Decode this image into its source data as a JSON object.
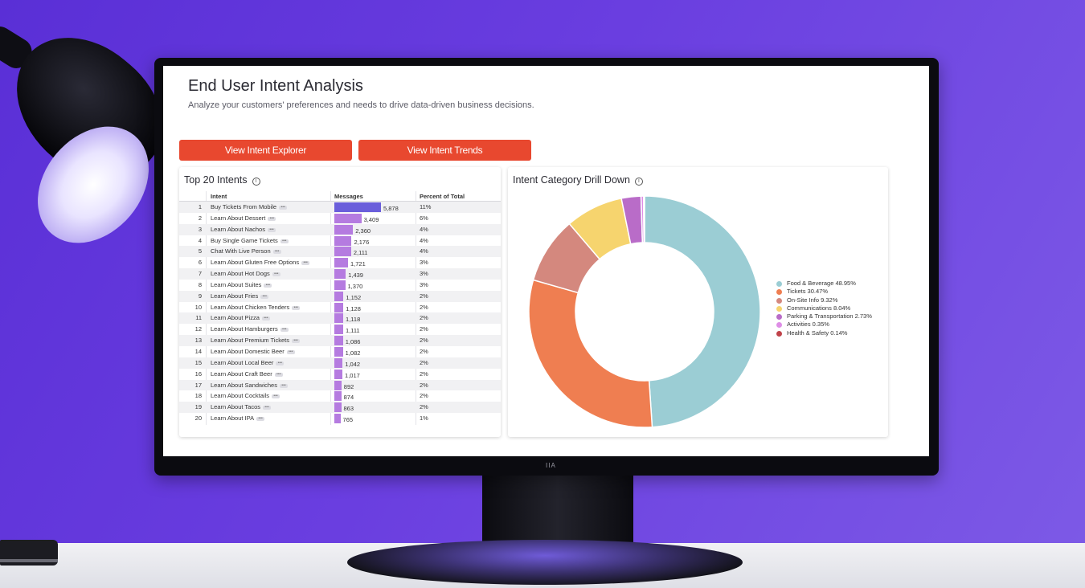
{
  "page": {
    "title": "End User Intent Analysis",
    "subtitle": "Analyze your customers' preferences and needs to drive data-driven business decisions."
  },
  "buttons": {
    "explorer": "View Intent Explorer",
    "trends": "View Intent Trends"
  },
  "monitor": {
    "logo": "IIA"
  },
  "left_card": {
    "title": "Top 20 Intents",
    "info_icon": "info-icon",
    "columns": {
      "intent": "Intent",
      "messages": "Messages",
      "percent": "Percent of Total"
    },
    "rows": [
      {
        "num": "1",
        "intent": "Buy Tickets From Mobile",
        "messages": "5,878",
        "value": 5878,
        "percent": "11%"
      },
      {
        "num": "2",
        "intent": "Learn About Dessert",
        "messages": "3,409",
        "value": 3409,
        "percent": "6%"
      },
      {
        "num": "3",
        "intent": "Learn About Nachos",
        "messages": "2,360",
        "value": 2360,
        "percent": "4%"
      },
      {
        "num": "4",
        "intent": "Buy Single Game Tickets",
        "messages": "2,176",
        "value": 2176,
        "percent": "4%"
      },
      {
        "num": "5",
        "intent": "Chat With Live Person",
        "messages": "2,111",
        "value": 2111,
        "percent": "4%"
      },
      {
        "num": "6",
        "intent": "Learn About Gluten Free Options",
        "messages": "1,721",
        "value": 1721,
        "percent": "3%"
      },
      {
        "num": "7",
        "intent": "Learn About Hot Dogs",
        "messages": "1,439",
        "value": 1439,
        "percent": "3%"
      },
      {
        "num": "8",
        "intent": "Learn About Suites",
        "messages": "1,370",
        "value": 1370,
        "percent": "3%"
      },
      {
        "num": "9",
        "intent": "Learn About Fries",
        "messages": "1,152",
        "value": 1152,
        "percent": "2%"
      },
      {
        "num": "10",
        "intent": "Learn About Chicken Tenders",
        "messages": "1,128",
        "value": 1128,
        "percent": "2%"
      },
      {
        "num": "11",
        "intent": "Learn About Pizza",
        "messages": "1,118",
        "value": 1118,
        "percent": "2%"
      },
      {
        "num": "12",
        "intent": "Learn About Hamburgers",
        "messages": "1,111",
        "value": 1111,
        "percent": "2%"
      },
      {
        "num": "13",
        "intent": "Learn About Premium Tickets",
        "messages": "1,086",
        "value": 1086,
        "percent": "2%"
      },
      {
        "num": "14",
        "intent": "Learn About Domestic Beer",
        "messages": "1,082",
        "value": 1082,
        "percent": "2%"
      },
      {
        "num": "15",
        "intent": "Learn About Local Beer",
        "messages": "1,042",
        "value": 1042,
        "percent": "2%"
      },
      {
        "num": "16",
        "intent": "Learn About Craft Beer",
        "messages": "1,017",
        "value": 1017,
        "percent": "2%"
      },
      {
        "num": "17",
        "intent": "Learn About Sandwiches",
        "messages": "892",
        "value": 892,
        "percent": "2%"
      },
      {
        "num": "18",
        "intent": "Learn About Cocktails",
        "messages": "874",
        "value": 874,
        "percent": "2%"
      },
      {
        "num": "19",
        "intent": "Learn About Tacos",
        "messages": "863",
        "value": 863,
        "percent": "2%"
      },
      {
        "num": "20",
        "intent": "Learn About IPA",
        "messages": "765",
        "value": 765,
        "percent": "1%"
      }
    ]
  },
  "right_card": {
    "title": "Intent Category Drill Down",
    "info_icon": "info-icon"
  },
  "chart_data": {
    "type": "pie",
    "variant": "donut",
    "legend_position": "right",
    "categories": [
      {
        "label": "Food & Beverage 48.95%",
        "value": 48.95,
        "color": "#9bcdd4"
      },
      {
        "label": "Tickets 30.47%",
        "value": 30.47,
        "color": "#ef7e51"
      },
      {
        "label": "On-Site Info 9.32%",
        "value": 9.32,
        "color": "#d4887e"
      },
      {
        "label": "Communications 8.04%",
        "value": 8.04,
        "color": "#f6d46e"
      },
      {
        "label": "Parking & Transportation 2.73%",
        "value": 2.73,
        "color": "#b96cc8"
      },
      {
        "label": "Activities 0.35%",
        "value": 0.35,
        "color": "#de8ee6"
      },
      {
        "label": "Health & Safety 0.14%",
        "value": 0.14,
        "color": "#c0434a"
      }
    ]
  },
  "colors": {
    "button": "#e8482f",
    "bar_top": "#6a5edb",
    "bar": "#b57be0"
  }
}
